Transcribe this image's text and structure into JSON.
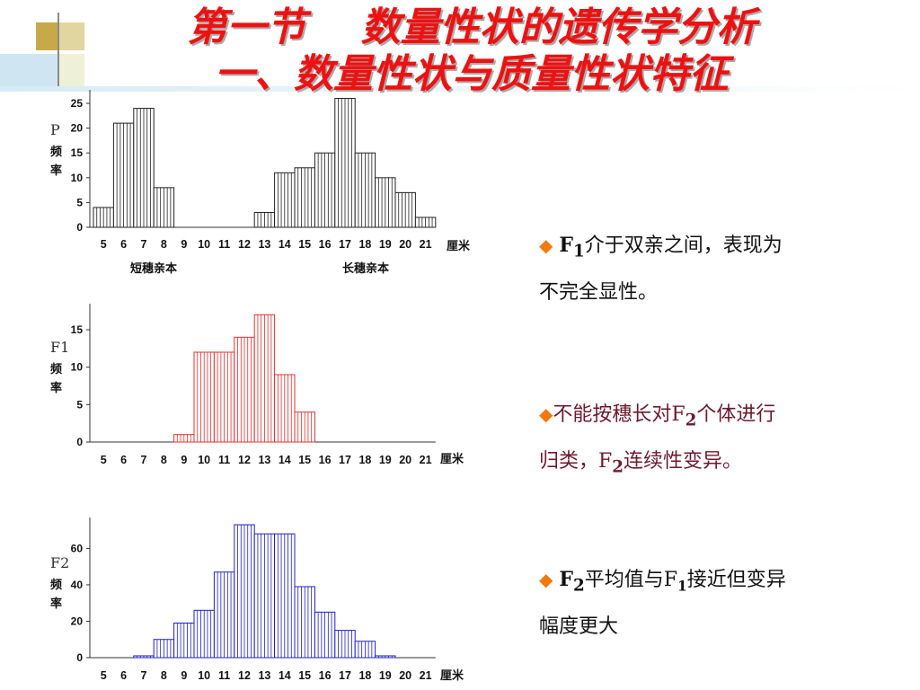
{
  "slide": {
    "title_line1": "第一节    数量性状的遗传学分析",
    "title_line2": "一、数量性状与质量性状特征"
  },
  "bullets": [
    {
      "marker": "◆",
      "p1": "F",
      "s1": "1",
      "p2": "介于双亲之间，表现为",
      "line2": "不完全显性。"
    },
    {
      "marker": "◆",
      "p1": "不能按穗长对F",
      "s1": "2",
      "p2": "个体进行",
      "line2a": "归类，F",
      "s2": "2",
      "line2b": "连续性变异。"
    },
    {
      "marker": "◆",
      "p1": "F",
      "s1": "2",
      "p2": "平均值与F",
      "s2": "1",
      "p3": "接近但变异",
      "line2": "幅度更大"
    }
  ],
  "colors": {
    "title": "#ee1111",
    "p_bars": "#222222",
    "f1_bars": "#e03030",
    "f2_bars": "#2020c0",
    "bullet_marker": "#f07a10"
  },
  "chart_data": [
    {
      "type": "bar",
      "ylabel_gen": "P",
      "ylabel_word": "频率",
      "xunit": "厘米",
      "categories": [
        "5",
        "6",
        "7",
        "8",
        "9",
        "10",
        "11",
        "12",
        "13",
        "14",
        "15",
        "16",
        "17",
        "18",
        "19",
        "20",
        "21"
      ],
      "yticks": [
        0,
        5,
        10,
        15,
        20,
        25
      ],
      "ylim": [
        0,
        27
      ],
      "values": [
        4,
        21,
        24,
        8,
        0,
        0,
        0,
        0,
        3,
        11,
        12,
        15,
        26,
        15,
        10,
        7,
        2
      ],
      "group_labels": [
        "短穗亲本",
        "长穗亲本"
      ],
      "color": "#222222"
    },
    {
      "type": "bar",
      "ylabel_gen": "F1",
      "ylabel_word": "频率",
      "xunit": "厘米",
      "categories": [
        "5",
        "6",
        "7",
        "8",
        "9",
        "10",
        "11",
        "12",
        "13",
        "14",
        "15",
        "16",
        "17",
        "18",
        "19",
        "20",
        "21"
      ],
      "yticks": [
        0,
        5,
        10,
        15
      ],
      "ylim": [
        0,
        18
      ],
      "values": [
        0,
        0,
        0,
        0,
        1,
        12,
        12,
        14,
        17,
        9,
        4,
        0,
        0,
        0,
        0,
        0,
        0
      ],
      "color": "#e03030"
    },
    {
      "type": "bar",
      "ylabel_gen": "F2",
      "ylabel_word": "频率",
      "xunit": "厘米",
      "categories": [
        "5",
        "6",
        "7",
        "8",
        "9",
        "10",
        "11",
        "12",
        "13",
        "14",
        "15",
        "16",
        "17",
        "18",
        "19",
        "20",
        "21"
      ],
      "yticks": [
        0,
        20,
        40,
        60
      ],
      "ylim": [
        0,
        75
      ],
      "values": [
        0,
        0,
        1,
        10,
        19,
        26,
        47,
        73,
        68,
        68,
        39,
        25,
        15,
        9,
        1,
        0,
        0
      ],
      "color": "#2020c0"
    }
  ]
}
